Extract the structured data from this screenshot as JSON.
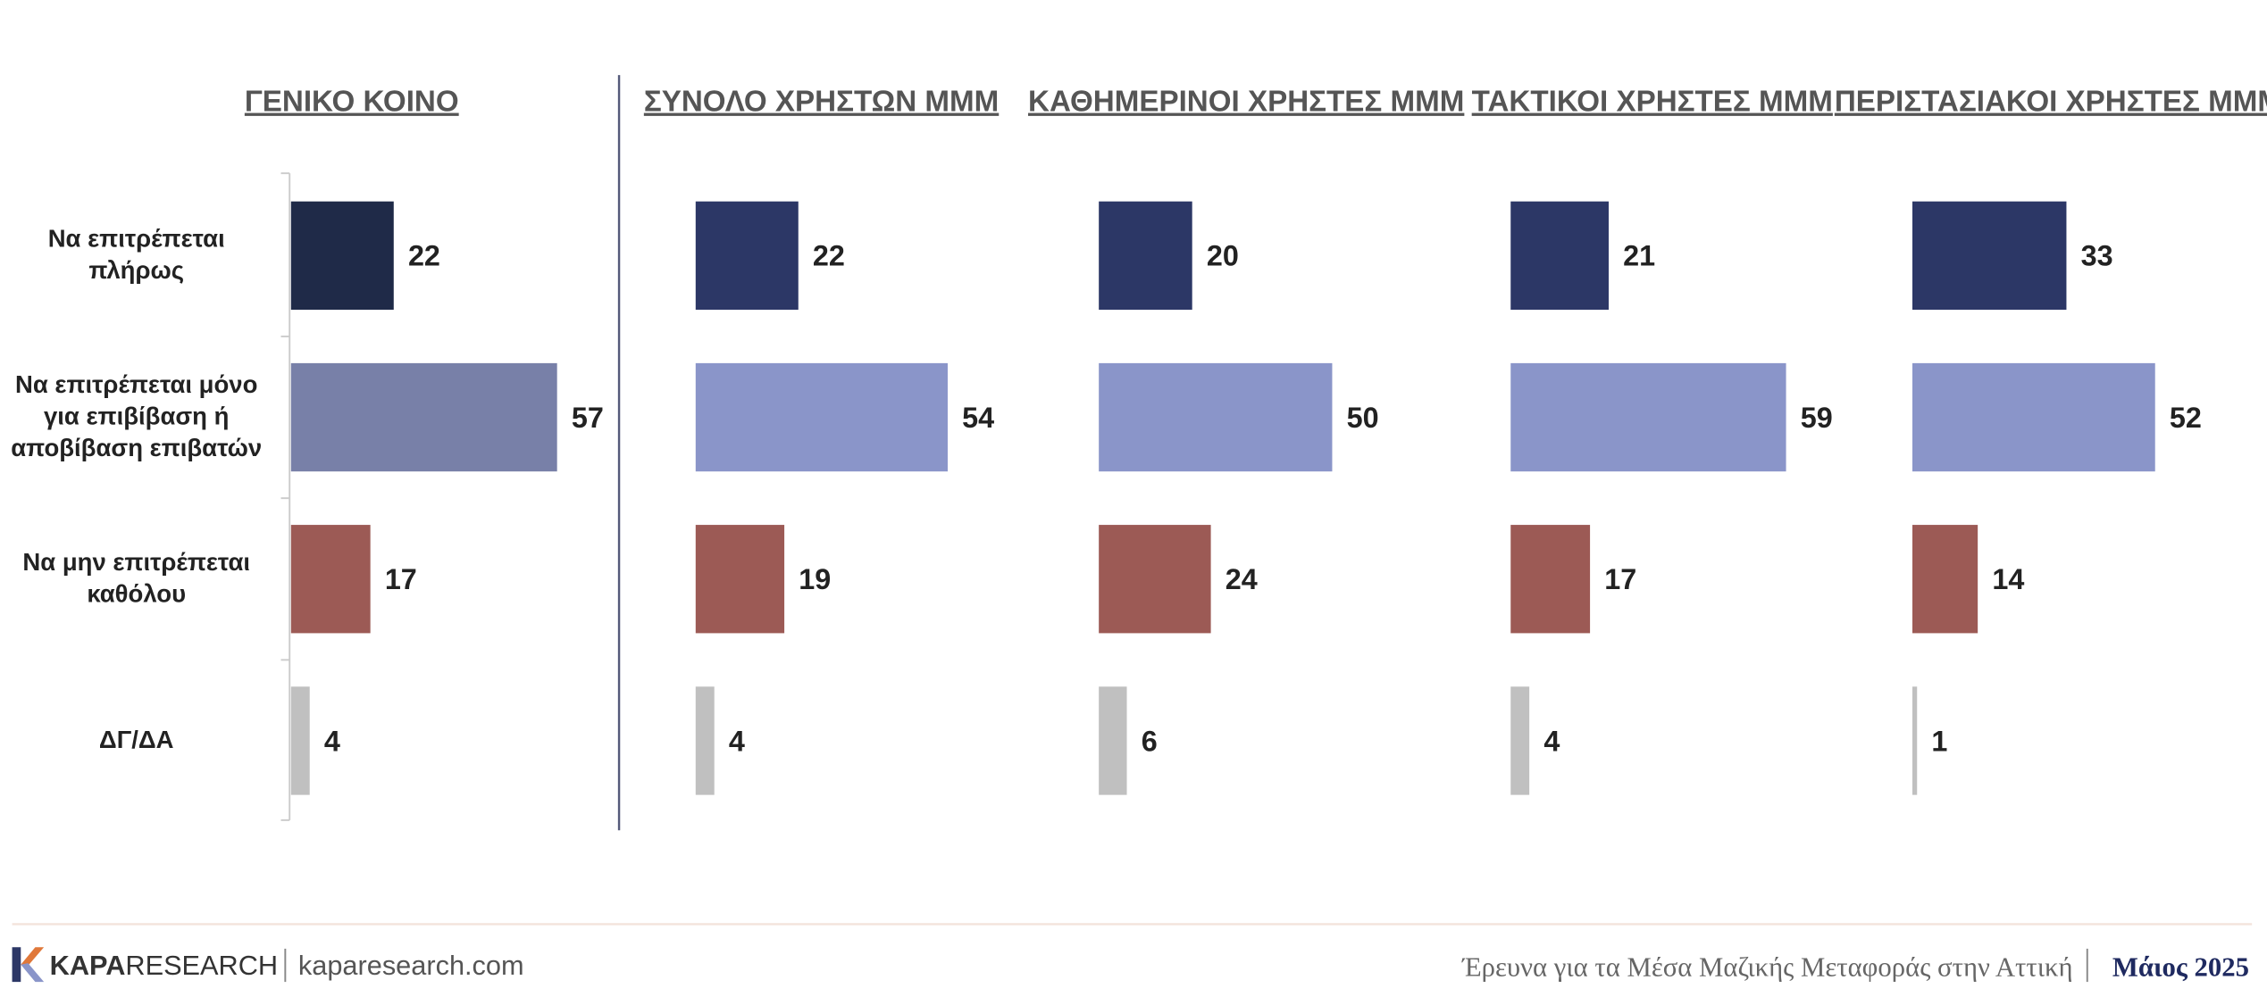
{
  "chart_data": [
    {
      "type": "barh",
      "title": "ΓΕΝΙΚΟ ΚΟΙΝΟ",
      "categories": [
        "Να επιτρέπεται πλήρως",
        "Να επιτρέπεται μόνο για επιβίβαση ή αποβίβαση επιβατών",
        "Να μην επιτρέπεται καθόλου",
        "ΔΓ/ΔΑ"
      ],
      "values": [
        22,
        57,
        17,
        4
      ],
      "colors": [
        "#1f2a48",
        "#7880a8",
        "#9c5a55",
        "#c0c0c0"
      ]
    },
    {
      "type": "barh",
      "title": "ΣΥΝΟΛΟ ΧΡΗΣΤΩΝ ΜΜΜ",
      "values": [
        22,
        54,
        19,
        4
      ],
      "colors": [
        "#2c3766",
        "#8a95c9",
        "#9c5a55",
        "#c0c0c0"
      ]
    },
    {
      "type": "barh",
      "title": "ΚΑΘΗΜΕΡΙΝΟΙ  ΧΡΗΣΤΕΣ ΜΜΜ",
      "values": [
        20,
        50,
        24,
        6
      ],
      "colors": [
        "#2c3766",
        "#8a95c9",
        "#9c5a55",
        "#c0c0c0"
      ]
    },
    {
      "type": "barh",
      "title": "ΤΑΚΤΙΚΟΙ ΧΡΗΣΤΕΣ ΜΜΜ",
      "values": [
        21,
        59,
        17,
        4
      ],
      "colors": [
        "#2c3766",
        "#8a95c9",
        "#9c5a55",
        "#c0c0c0"
      ]
    },
    {
      "type": "barh",
      "title": "ΠΕΡΙΣΤΑΣΙΑΚΟΙ ΧΡΗΣΤΕΣ ΜΜΜ",
      "values": [
        33,
        52,
        14,
        1
      ],
      "colors": [
        "#2c3766",
        "#8a95c9",
        "#9c5a55",
        "#c0c0c0"
      ]
    }
  ],
  "footer": {
    "brand_bold": "KAPA",
    "brand": "RESEARCH",
    "website": "kaparesearch.com",
    "survey": "Έρευνα για τα Μέσα Μαζικής Μεταφοράς στην Αττική",
    "date": "Μάιος 2025"
  }
}
